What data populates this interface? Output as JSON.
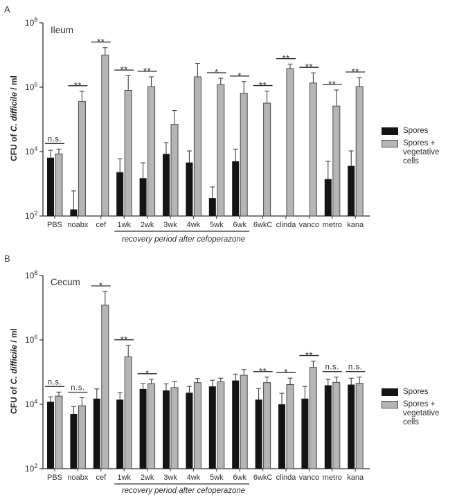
{
  "figure": {
    "legend": {
      "items": [
        {
          "label": "Spores",
          "color": "#141414"
        },
        {
          "label_line1": "Spores +",
          "label_line2": "vegetative cells",
          "color": "#b5b5b5",
          "border": "#4a4a4a"
        }
      ]
    }
  },
  "chart_data": [
    {
      "type": "bar",
      "panel_label": "A",
      "title": "Ileum",
      "ylabel": "CFU of C. difficile / ml",
      "ylabel_parts": {
        "prefix": "CFU of ",
        "italic": "C. difficile",
        "suffix": " / ml"
      },
      "y_scale": "log",
      "ylim": [
        100,
        100000000
      ],
      "ytick_exponents": [
        2,
        4,
        6,
        8
      ],
      "ytick_labels": [
        "10^2",
        "10^4",
        "10^6",
        "10^8"
      ],
      "grid": false,
      "legend_position": "right",
      "categories": [
        "PBS",
        "noabx",
        "cef",
        "1wk",
        "2wk",
        "3wk",
        "4wk",
        "5wk",
        "6wk",
        "6wkC",
        "clinda",
        "vanco",
        "metro",
        "kana"
      ],
      "x_group_label": "recovery period after cefoperazone",
      "x_group_span": [
        "1wk",
        "6wk"
      ],
      "series": [
        {
          "name": "Spores",
          "color": "#141414",
          "values": [
            6500,
            160,
            null,
            2300,
            1500,
            8500,
            4600,
            360,
            5000,
            null,
            null,
            null,
            1400,
            3600
          ],
          "error_top": [
            11000,
            600,
            null,
            6000,
            4500,
            19000,
            10500,
            800,
            12000,
            null,
            null,
            null,
            5000,
            10500
          ]
        },
        {
          "name": "Spores + vegetative cells",
          "color": "#b5b5b5",
          "values": [
            8500,
            360000,
            10000000,
            800000,
            1050000,
            70000,
            2100000,
            1200000,
            650000,
            320000,
            3800000,
            1350000,
            260000,
            1050000
          ],
          "error_top": [
            12000,
            750000,
            17000000,
            2300000,
            2100000,
            190000,
            5500000,
            1900000,
            1500000,
            760000,
            5200000,
            2800000,
            820000,
            2000000
          ]
        }
      ],
      "significance": [
        "n.s.",
        "**",
        "**",
        "**",
        "**",
        null,
        null,
        "*",
        "*",
        "**",
        "**",
        "**",
        "**",
        "**"
      ]
    },
    {
      "type": "bar",
      "panel_label": "B",
      "title": "Cecum",
      "ylabel": "CFU of C. difficile / ml",
      "ylabel_parts": {
        "prefix": "CFU of ",
        "italic": "C. difficile",
        "suffix": " / ml"
      },
      "y_scale": "log",
      "ylim": [
        100,
        100000000
      ],
      "ytick_exponents": [
        2,
        4,
        6,
        8
      ],
      "ytick_labels": [
        "10^2",
        "10^4",
        "10^6",
        "10^8"
      ],
      "grid": false,
      "legend_position": "right",
      "categories": [
        "PBS",
        "noabx",
        "cef",
        "1wk",
        "2wk",
        "3wk",
        "4wk",
        "5wk",
        "6wk",
        "6wkC",
        "clinda",
        "vanco",
        "metro",
        "kana"
      ],
      "x_group_label": "recovery period after cefoperazone",
      "x_group_span": [
        "1wk",
        "6wk"
      ],
      "series": [
        {
          "name": "Spores",
          "color": "#141414",
          "values": [
            12000,
            5000,
            15000,
            14000,
            30000,
            27000,
            23000,
            36000,
            55000,
            14000,
            10000,
            15000,
            39000,
            41000
          ],
          "error_top": [
            17000,
            8500,
            30000,
            23000,
            44000,
            43000,
            36000,
            56000,
            87000,
            31000,
            22000,
            36000,
            60000,
            65000
          ]
        },
        {
          "name": "Spores + vegetative cells",
          "color": "#b5b5b5",
          "values": [
            18000,
            9000,
            12000000,
            300000,
            44000,
            33000,
            47000,
            50000,
            80000,
            47000,
            41000,
            140000,
            48000,
            45000
          ],
          "error_top": [
            24000,
            16000,
            32000000,
            680000,
            60000,
            50000,
            63000,
            65000,
            120000,
            70000,
            65000,
            220000,
            70000,
            70000
          ]
        }
      ],
      "significance": [
        "n.s.",
        "n.s.",
        "*",
        "**",
        "*",
        null,
        null,
        null,
        null,
        "**",
        "*",
        "**",
        "n.s.",
        "n.s."
      ]
    }
  ]
}
